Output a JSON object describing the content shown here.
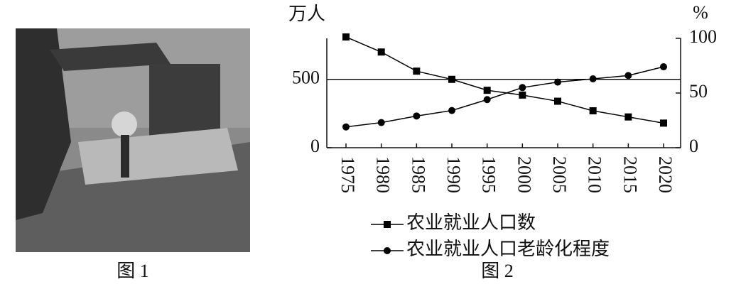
{
  "figure1": {
    "caption": "图 1"
  },
  "chart_data": {
    "type": "line",
    "caption": "图 2",
    "y_label": "万人",
    "y2_label": "%",
    "categories": [
      "1975",
      "1980",
      "1985",
      "1990",
      "1995",
      "2000",
      "2005",
      "2010",
      "2015",
      "2020"
    ],
    "series": [
      {
        "name": "农业就业人口数",
        "color": "#000000",
        "marker": "square",
        "axis": "y",
        "values": [
          810,
          700,
          560,
          500,
          420,
          385,
          340,
          270,
          225,
          180
        ]
      },
      {
        "name": "农业就业人口老龄化程度",
        "color": "#000000",
        "marker": "circle",
        "axis": "y2",
        "values": [
          19,
          23,
          29,
          34,
          44,
          55,
          60,
          63,
          66,
          74
        ]
      }
    ],
    "ylim": [
      0,
      800
    ],
    "yticks": [
      0,
      500
    ],
    "y2lim": [
      0,
      100
    ],
    "y2ticks": [
      0,
      50,
      100
    ],
    "grid": true,
    "legend": "bottom"
  }
}
